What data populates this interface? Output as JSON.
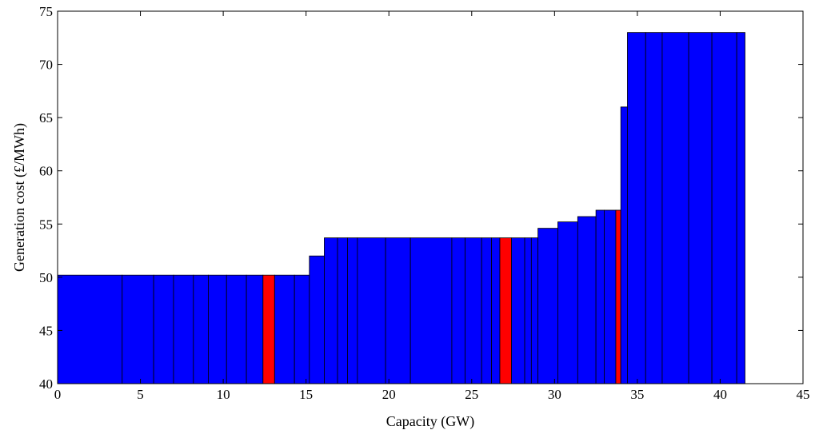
{
  "chart_data": {
    "type": "bar",
    "subtype": "merit-order-step",
    "title": "",
    "xlabel": "Capacity (GW)",
    "ylabel": "Generation cost (£/MWh)",
    "xlim": [
      0,
      45
    ],
    "ylim": [
      40,
      75
    ],
    "xticks": [
      0,
      5,
      10,
      15,
      20,
      25,
      30,
      35,
      40,
      45
    ],
    "yticks": [
      40,
      45,
      50,
      55,
      60,
      65,
      70,
      75
    ],
    "grid": false,
    "legend": "none",
    "colors": {
      "default": "#0000ff",
      "highlight": "#ff0000",
      "edge": "#000000"
    },
    "blocks": [
      {
        "x0": 0.0,
        "x1": 3.9,
        "cost": 50.2,
        "color": "blue"
      },
      {
        "x0": 3.9,
        "x1": 5.8,
        "cost": 50.2,
        "color": "blue"
      },
      {
        "x0": 5.8,
        "x1": 7.0,
        "cost": 50.2,
        "color": "blue"
      },
      {
        "x0": 7.0,
        "x1": 8.2,
        "cost": 50.2,
        "color": "blue"
      },
      {
        "x0": 8.2,
        "x1": 9.1,
        "cost": 50.2,
        "color": "blue"
      },
      {
        "x0": 9.1,
        "x1": 10.2,
        "cost": 50.2,
        "color": "blue"
      },
      {
        "x0": 10.2,
        "x1": 11.4,
        "cost": 50.2,
        "color": "blue"
      },
      {
        "x0": 11.4,
        "x1": 12.4,
        "cost": 50.2,
        "color": "blue"
      },
      {
        "x0": 12.4,
        "x1": 13.1,
        "cost": 50.2,
        "color": "red"
      },
      {
        "x0": 13.1,
        "x1": 14.3,
        "cost": 50.2,
        "color": "blue"
      },
      {
        "x0": 14.3,
        "x1": 15.2,
        "cost": 50.2,
        "color": "blue"
      },
      {
        "x0": 15.2,
        "x1": 16.1,
        "cost": 52.0,
        "color": "blue"
      },
      {
        "x0": 16.1,
        "x1": 16.9,
        "cost": 53.7,
        "color": "blue"
      },
      {
        "x0": 16.9,
        "x1": 17.5,
        "cost": 53.7,
        "color": "blue"
      },
      {
        "x0": 17.5,
        "x1": 18.1,
        "cost": 53.7,
        "color": "blue"
      },
      {
        "x0": 18.1,
        "x1": 19.8,
        "cost": 53.7,
        "color": "blue"
      },
      {
        "x0": 19.8,
        "x1": 21.3,
        "cost": 53.7,
        "color": "blue"
      },
      {
        "x0": 21.3,
        "x1": 23.8,
        "cost": 53.7,
        "color": "blue"
      },
      {
        "x0": 23.8,
        "x1": 24.6,
        "cost": 53.7,
        "color": "blue"
      },
      {
        "x0": 24.6,
        "x1": 25.6,
        "cost": 53.7,
        "color": "blue"
      },
      {
        "x0": 25.6,
        "x1": 26.2,
        "cost": 53.7,
        "color": "blue"
      },
      {
        "x0": 26.2,
        "x1": 26.7,
        "cost": 53.7,
        "color": "blue"
      },
      {
        "x0": 26.7,
        "x1": 27.4,
        "cost": 53.7,
        "color": "red"
      },
      {
        "x0": 27.4,
        "x1": 28.2,
        "cost": 53.7,
        "color": "blue"
      },
      {
        "x0": 28.2,
        "x1": 28.6,
        "cost": 53.7,
        "color": "blue"
      },
      {
        "x0": 28.6,
        "x1": 29.0,
        "cost": 53.7,
        "color": "blue"
      },
      {
        "x0": 29.0,
        "x1": 30.2,
        "cost": 54.6,
        "color": "blue"
      },
      {
        "x0": 30.2,
        "x1": 31.4,
        "cost": 55.2,
        "color": "blue"
      },
      {
        "x0": 31.4,
        "x1": 32.5,
        "cost": 55.7,
        "color": "blue"
      },
      {
        "x0": 32.5,
        "x1": 33.0,
        "cost": 56.3,
        "color": "blue"
      },
      {
        "x0": 33.0,
        "x1": 33.7,
        "cost": 56.3,
        "color": "blue"
      },
      {
        "x0": 33.7,
        "x1": 34.0,
        "cost": 56.3,
        "color": "red"
      },
      {
        "x0": 34.0,
        "x1": 34.4,
        "cost": 66.0,
        "color": "blue"
      },
      {
        "x0": 34.4,
        "x1": 35.5,
        "cost": 73.0,
        "color": "blue"
      },
      {
        "x0": 35.5,
        "x1": 36.5,
        "cost": 73.0,
        "color": "blue"
      },
      {
        "x0": 36.5,
        "x1": 38.1,
        "cost": 73.0,
        "color": "blue"
      },
      {
        "x0": 38.1,
        "x1": 39.5,
        "cost": 73.0,
        "color": "blue"
      },
      {
        "x0": 39.5,
        "x1": 41.0,
        "cost": 73.0,
        "color": "blue"
      },
      {
        "x0": 41.0,
        "x1": 41.5,
        "cost": 73.0,
        "color": "blue"
      }
    ]
  }
}
